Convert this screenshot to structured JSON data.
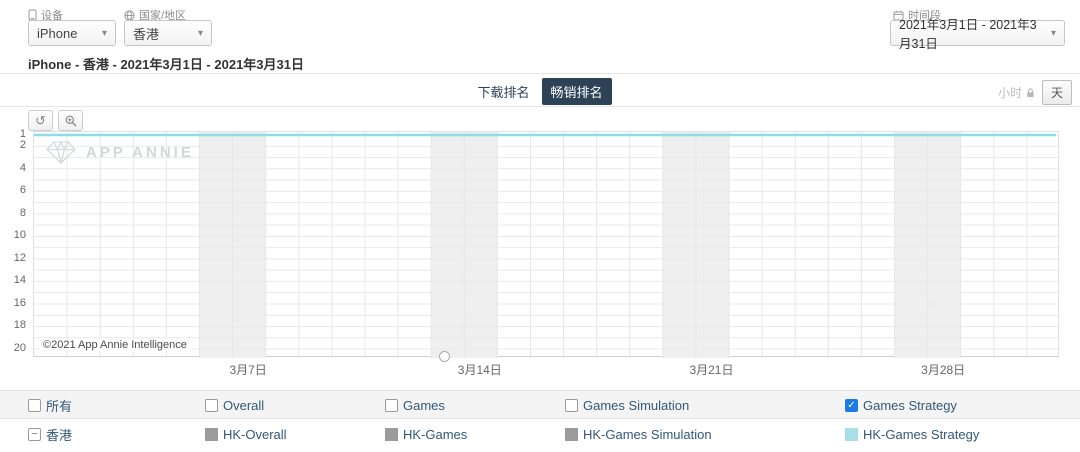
{
  "filters": {
    "device": {
      "label": "设备",
      "value": "iPhone",
      "icon": "device-icon"
    },
    "country": {
      "label": "国家/地区",
      "value": "香港",
      "icon": "globe-icon"
    },
    "period": {
      "label": "时间段",
      "value": "2021年3月1日 - 2021年3月31日",
      "icon": "calendar-icon"
    }
  },
  "subtitle": "iPhone - 香港 - 2021年3月1日 - 2021年3月31日",
  "tabs": {
    "download": "下载排名",
    "revenue": "畅销排名",
    "selected": "畅销排名"
  },
  "granularity": {
    "hour": "小时",
    "day": "天",
    "selected": "天",
    "hour_locked": true
  },
  "toolbar": {
    "reset_glyph": "↺",
    "zoom_icon": "zoom-in-icon"
  },
  "watermark": {
    "brand": "APP ANNIE",
    "logo": "gem-icon"
  },
  "copyright": "©2021 App Annie Intelligence",
  "axis_handle": {
    "position_fraction": 0.4
  },
  "chart_data": {
    "type": "line",
    "title": "iPhone - 香港 - 2021年3月1日 - 2021年3月31日",
    "x_range": [
      "2021年3月1日",
      "2021年3月31日"
    ],
    "num_days": 31,
    "xticks": [
      {
        "day": 7,
        "label": "3月7日"
      },
      {
        "day": 14,
        "label": "3月14日"
      },
      {
        "day": 21,
        "label": "3月21日"
      },
      {
        "day": 28,
        "label": "3月28日"
      }
    ],
    "weekend_days": [
      6,
      7,
      13,
      14,
      20,
      21,
      27,
      28
    ],
    "yticks": [
      1,
      2,
      4,
      6,
      8,
      10,
      12,
      14,
      16,
      18,
      20
    ],
    "ylim": [
      1,
      20
    ],
    "y_inverted": true,
    "grid": true,
    "legend_position": "bottom",
    "series": [
      {
        "name": "HK-Games Strategy",
        "color": "#8edce6",
        "values": [
          1,
          1,
          1,
          1,
          1,
          1,
          1,
          1,
          1,
          1,
          1,
          1,
          1,
          1,
          1,
          1,
          1,
          1,
          1,
          1,
          1,
          1,
          1,
          1,
          1,
          1,
          1,
          1,
          1,
          1,
          1
        ]
      }
    ]
  },
  "legend": {
    "categories": [
      {
        "label": "所有",
        "checked": false
      },
      {
        "label": "Overall",
        "checked": false
      },
      {
        "label": "Games",
        "checked": false
      },
      {
        "label": "Games Simulation",
        "checked": false
      },
      {
        "label": "Games Strategy",
        "checked": true
      }
    ],
    "group": {
      "label": "香港"
    },
    "series": [
      {
        "label": "HK-Overall",
        "color": "#9b9b9b"
      },
      {
        "label": "HK-Games",
        "color": "#9b9b9b"
      },
      {
        "label": "HK-Games Simulation",
        "color": "#9b9b9b"
      },
      {
        "label": "HK-Games Strategy",
        "color": "#a9dee8"
      }
    ]
  },
  "colors": {
    "accent_checked": "#1c7be5",
    "tab_selected_bg": "#2d4257",
    "line": "#8edce6",
    "weekend_band": "#efefef"
  }
}
